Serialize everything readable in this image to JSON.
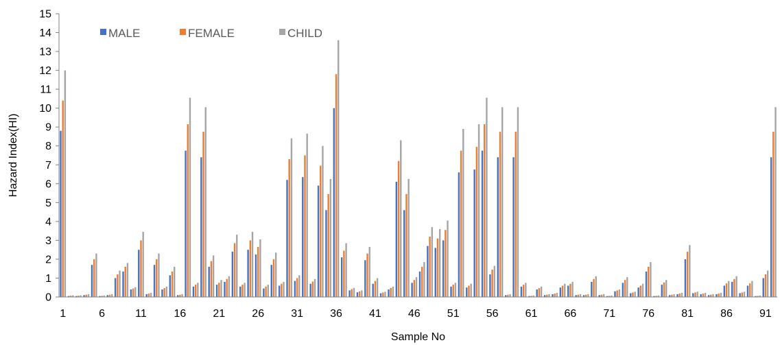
{
  "chart_data": {
    "type": "bar",
    "xlabel": "Sample No",
    "ylabel": "Hazard Index(HI)",
    "ylim": [
      0,
      15
    ],
    "yticks": [
      "0",
      "1",
      "2",
      "3",
      "4",
      "5",
      "6",
      "7",
      "8",
      "9",
      "10",
      "11",
      "12",
      "13",
      "14",
      "15"
    ],
    "xtick_labels": [
      "1",
      "6",
      "11",
      "16",
      "21",
      "26",
      "31",
      "36",
      "41",
      "46",
      "51",
      "56",
      "61",
      "66",
      "71",
      "76",
      "81",
      "86",
      "91"
    ],
    "grid": false,
    "legend_position": "top-left",
    "categories": [
      1,
      2,
      3,
      4,
      5,
      6,
      7,
      8,
      9,
      10,
      11,
      12,
      13,
      14,
      15,
      16,
      17,
      18,
      19,
      20,
      21,
      22,
      23,
      24,
      25,
      26,
      27,
      28,
      29,
      30,
      31,
      32,
      33,
      34,
      35,
      36,
      37,
      38,
      39,
      40,
      41,
      42,
      43,
      44,
      45,
      46,
      47,
      48,
      49,
      50,
      51,
      52,
      53,
      54,
      55,
      56,
      57,
      58,
      59,
      60,
      61,
      62,
      63,
      64,
      65,
      66,
      67,
      68,
      69,
      70,
      71,
      72,
      73,
      74,
      75,
      76,
      77,
      78,
      79,
      80,
      81,
      82,
      83,
      84,
      85,
      86,
      87,
      88,
      89,
      90,
      91,
      92
    ],
    "series": [
      {
        "name": "MALE",
        "color": "#4472C4",
        "values": [
          8.8,
          0.05,
          0.05,
          0.1,
          1.7,
          0.05,
          0.1,
          1.0,
          1.35,
          0.4,
          2.5,
          0.15,
          1.7,
          0.4,
          1.15,
          0.1,
          7.75,
          0.55,
          7.4,
          1.6,
          0.65,
          0.8,
          2.4,
          0.55,
          2.5,
          2.25,
          0.45,
          1.7,
          0.6,
          6.2,
          0.85,
          6.35,
          0.7,
          5.9,
          4.6,
          10.0,
          2.1,
          0.35,
          0.25,
          1.95,
          0.7,
          0.2,
          0.4,
          6.1,
          4.6,
          0.75,
          1.35,
          2.7,
          2.6,
          3.0,
          0.55,
          6.6,
          0.5,
          6.75,
          7.75,
          1.2,
          7.4,
          0.1,
          7.4,
          0.55,
          0.05,
          0.4,
          0.1,
          0.15,
          0.5,
          0.6,
          0.1,
          0.1,
          0.8,
          0.1,
          0.05,
          0.3,
          0.75,
          0.2,
          0.5,
          1.35,
          0.05,
          0.65,
          0.1,
          0.15,
          2.0,
          0.2,
          0.15,
          0.1,
          0.15,
          0.6,
          0.8,
          0.2,
          0.6,
          0.05,
          1.0,
          7.4
        ]
      },
      {
        "name": "FEMALE",
        "color": "#ED7D31",
        "values": [
          10.4,
          0.07,
          0.07,
          0.12,
          2.0,
          0.06,
          0.12,
          1.2,
          1.6,
          0.45,
          3.0,
          0.18,
          2.0,
          0.47,
          1.35,
          0.12,
          9.15,
          0.65,
          8.75,
          1.9,
          0.75,
          0.95,
          2.85,
          0.65,
          3.0,
          2.65,
          0.55,
          2.0,
          0.7,
          7.3,
          1.0,
          7.5,
          0.82,
          6.95,
          5.45,
          11.8,
          2.45,
          0.42,
          0.3,
          2.3,
          0.85,
          0.24,
          0.48,
          7.2,
          5.45,
          0.9,
          1.6,
          3.2,
          3.1,
          3.55,
          0.65,
          7.75,
          0.6,
          7.95,
          9.15,
          1.45,
          8.75,
          0.12,
          8.75,
          0.65,
          0.06,
          0.47,
          0.12,
          0.18,
          0.6,
          0.7,
          0.12,
          0.12,
          0.95,
          0.12,
          0.06,
          0.35,
          0.9,
          0.24,
          0.6,
          1.6,
          0.06,
          0.77,
          0.12,
          0.18,
          2.4,
          0.24,
          0.18,
          0.12,
          0.18,
          0.72,
          0.95,
          0.24,
          0.72,
          0.06,
          1.2,
          8.75
        ]
      },
      {
        "name": "CHILD",
        "color": "#A5A5A5",
        "values": [
          12.0,
          0.09,
          0.09,
          0.15,
          2.3,
          0.08,
          0.15,
          1.4,
          1.8,
          0.52,
          3.45,
          0.22,
          2.3,
          0.55,
          1.6,
          0.15,
          10.55,
          0.75,
          10.05,
          2.2,
          0.9,
          1.1,
          3.3,
          0.75,
          3.45,
          3.05,
          0.65,
          2.35,
          0.8,
          8.4,
          1.15,
          8.65,
          0.95,
          8.0,
          6.25,
          13.6,
          2.85,
          0.48,
          0.35,
          2.65,
          1.0,
          0.28,
          0.55,
          8.3,
          6.25,
          1.05,
          1.85,
          3.7,
          3.6,
          4.05,
          0.75,
          8.9,
          0.7,
          9.15,
          10.55,
          1.65,
          10.05,
          0.15,
          10.05,
          0.75,
          0.08,
          0.55,
          0.15,
          0.22,
          0.7,
          0.8,
          0.15,
          0.15,
          1.1,
          0.15,
          0.08,
          0.4,
          1.05,
          0.28,
          0.7,
          1.85,
          0.08,
          0.9,
          0.15,
          0.22,
          2.75,
          0.28,
          0.22,
          0.15,
          0.22,
          0.85,
          1.1,
          0.28,
          0.85,
          0.08,
          1.4,
          10.05
        ]
      }
    ]
  }
}
